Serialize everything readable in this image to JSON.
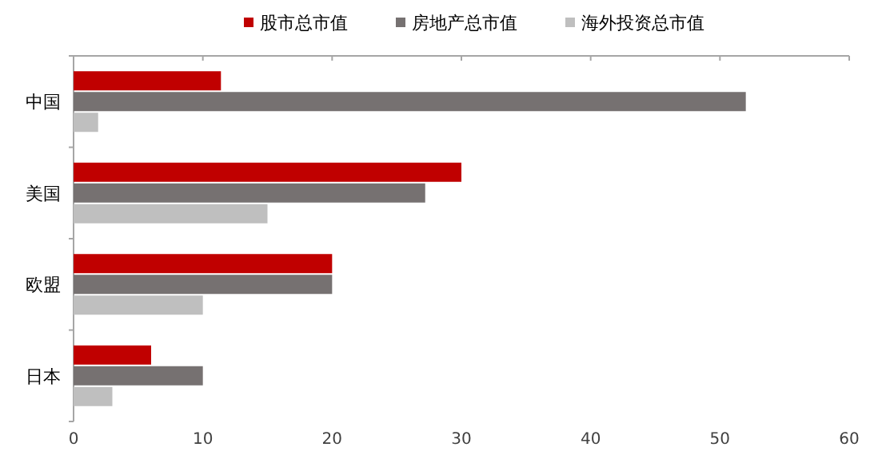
{
  "chart_data": {
    "type": "bar",
    "orientation": "horizontal",
    "categories": [
      "中国",
      "美国",
      "欧盟",
      "日本"
    ],
    "series": [
      {
        "name": "股市总市值",
        "color": "#c00000",
        "values": [
          11.4,
          30,
          20,
          6
        ]
      },
      {
        "name": "房地产总市值",
        "color": "#767171",
        "values": [
          52,
          27.2,
          20,
          10
        ]
      },
      {
        "name": "海外投资总市值",
        "color": "#bfbfbf",
        "values": [
          1.9,
          15,
          10,
          3
        ]
      }
    ],
    "xlim": [
      0,
      60
    ],
    "xticks": [
      0,
      10,
      20,
      30,
      40,
      50,
      60
    ],
    "legend": "top",
    "grid": false
  }
}
